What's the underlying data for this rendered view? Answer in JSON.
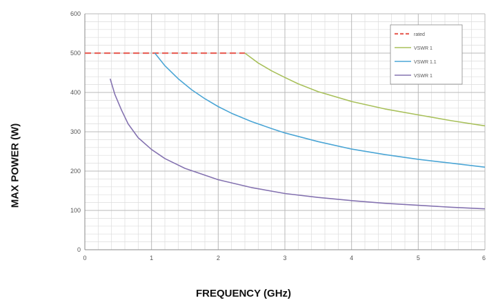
{
  "chart_data": {
    "type": "line",
    "title": "",
    "xlabel": "FREQUENCY (GHz)",
    "ylabel": "MAX POWER (W)",
    "xlim": [
      0,
      6
    ],
    "ylim": [
      0,
      600
    ],
    "xticks": [
      "0",
      "1",
      "2",
      "3",
      "4",
      "5",
      "6"
    ],
    "yticks": [
      "0",
      "100",
      "200",
      "300",
      "400",
      "500",
      "600"
    ],
    "grid": true,
    "legend_position": "top-right",
    "series": [
      {
        "name": "rated",
        "color": "#e8635a",
        "dashed": true,
        "x": [
          0,
          0.5,
          1.0,
          1.5,
          2.0,
          2.4
        ],
        "y": [
          500,
          500,
          500,
          500,
          500,
          500
        ]
      },
      {
        "name": "VSWR 1",
        "color": "#a8c05a",
        "dashed": false,
        "x": [
          2.4,
          2.6,
          2.8,
          3.0,
          3.2,
          3.5,
          4.0,
          4.5,
          5.0,
          5.5,
          6.0
        ],
        "y": [
          500,
          475,
          455,
          438,
          422,
          402,
          377,
          358,
          343,
          328,
          315
        ]
      },
      {
        "name": "VSWR 1.1",
        "color": "#4aa5d5",
        "dashed": false,
        "x": [
          1.05,
          1.2,
          1.4,
          1.6,
          1.8,
          2.0,
          2.2,
          2.5,
          2.8,
          3.0,
          3.5,
          4.0,
          4.5,
          5.0,
          5.5,
          6.0
        ],
        "y": [
          500,
          468,
          435,
          407,
          384,
          364,
          347,
          326,
          308,
          297,
          275,
          256,
          242,
          230,
          220,
          210
        ]
      },
      {
        "name": "VSWR 1",
        "color": "#8472b0",
        "dashed": false,
        "x": [
          0.38,
          0.45,
          0.55,
          0.65,
          0.8,
          1.0,
          1.2,
          1.5,
          2.0,
          2.5,
          3.0,
          3.5,
          4.0,
          4.5,
          5.0,
          5.5,
          6.0
        ],
        "y": [
          435,
          395,
          355,
          320,
          285,
          255,
          232,
          207,
          178,
          158,
          143,
          133,
          125,
          118,
          113,
          108,
          104
        ]
      }
    ]
  }
}
